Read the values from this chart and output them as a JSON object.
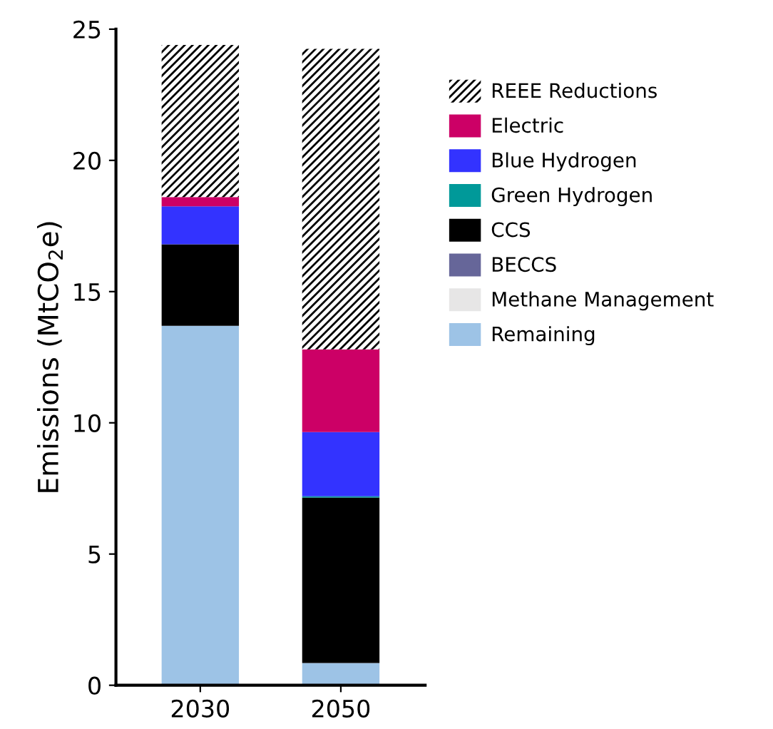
{
  "chart_data": {
    "type": "bar",
    "ylabel": "Emissions (MtCO$_{2}$e)",
    "categories": [
      "2030",
      "2050"
    ],
    "stacked": true,
    "series": [
      {
        "name": "Remaining",
        "color": "#9dc3e6",
        "values": [
          13.7,
          0.85
        ]
      },
      {
        "name": "Methane Management",
        "color": "#e7e6e6",
        "values": [
          null,
          0
        ]
      },
      {
        "name": "BECCS",
        "color": "#666699",
        "values": [
          0,
          0
        ]
      },
      {
        "name": "CCS",
        "color": "#000000",
        "values": [
          3.1,
          6.3
        ]
      },
      {
        "name": "Green Hydrogen",
        "color": "#009999",
        "values": [
          0,
          0.05
        ]
      },
      {
        "name": "Blue Hydrogen",
        "color": "#3333ff",
        "values": [
          1.45,
          2.45
        ]
      },
      {
        "name": "Electric",
        "color": "#cc0066",
        "values": [
          0.35,
          3.15
        ]
      },
      {
        "name": "REEE Reductions",
        "color": "#ffffff",
        "values": [
          5.8,
          11.45
        ]
      }
    ],
    "ylim": [
      0,
      25
    ],
    "yticks": [
      0,
      5,
      10,
      15,
      20,
      25
    ],
    "grid": false,
    "legend": "right"
  }
}
